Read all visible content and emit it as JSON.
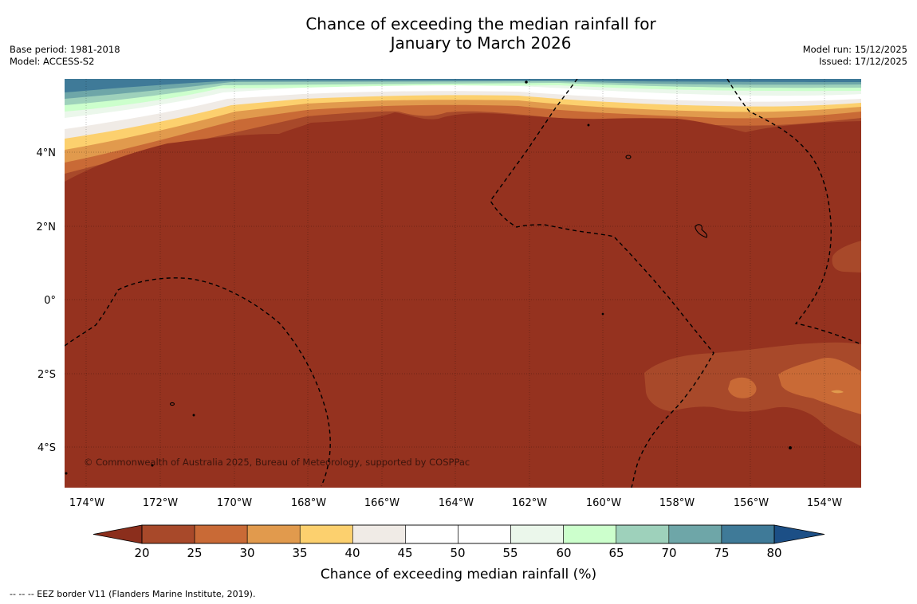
{
  "title": {
    "line1": "Chance of exceeding the median rainfall for",
    "line2": "January to March 2026"
  },
  "meta": {
    "base_period": "Base period: 1981-2018",
    "model": "Model: ACCESS-S2",
    "model_run": "Model run: 15/12/2025",
    "issued": "Issued: 17/12/2025"
  },
  "map": {
    "lon_labels": [
      "174°W",
      "172°W",
      "170°W",
      "168°W",
      "166°W",
      "164°W",
      "162°W",
      "160°W",
      "158°W",
      "156°W",
      "154°W"
    ],
    "lat_labels": [
      "4°N",
      "2°N",
      "0°",
      "2°S",
      "4°S"
    ],
    "copyright": "© Commonwealth of Australia 2025, Bureau of Meteorology, supported by COSPPac"
  },
  "colorbar": {
    "ticks": [
      "20",
      "25",
      "30",
      "35",
      "40",
      "45",
      "50",
      "55",
      "60",
      "65",
      "70",
      "75",
      "80"
    ],
    "label": "Chance of exceeding median rainfall (%)",
    "colors": {
      "under": "#8b2e1c",
      "c20_25": "#a8492a",
      "c25_30": "#c96a36",
      "c30_35": "#e19a4d",
      "c35_40": "#fcd06e",
      "c40_45": "#f0ebe6",
      "c45_50": "#ffffff",
      "c50_55": "#ffffff",
      "c55_60": "#ebf7eb",
      "c60_65": "#ccffcc",
      "c65_70": "#9ed1bb",
      "c70_75": "#6ea6a8",
      "c75_80": "#3f7a98",
      "over": "#1c4f86"
    }
  },
  "footer": "-- -- -- EEZ border V11 (Flanders Marine Institute, 2019)."
}
